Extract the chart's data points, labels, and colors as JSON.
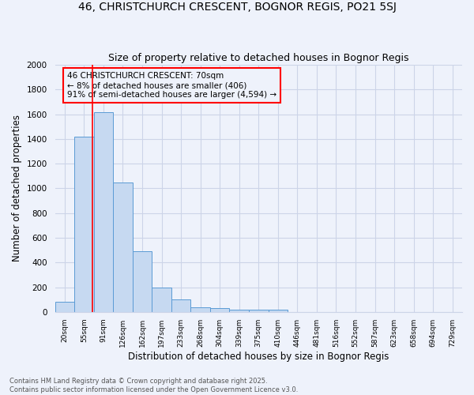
{
  "title": "46, CHRISTCHURCH CRESCENT, BOGNOR REGIS, PO21 5SJ",
  "subtitle": "Size of property relative to detached houses in Bognor Regis",
  "xlabel": "Distribution of detached houses by size in Bognor Regis",
  "ylabel": "Number of detached properties",
  "categories": [
    "20sqm",
    "55sqm",
    "91sqm",
    "126sqm",
    "162sqm",
    "197sqm",
    "233sqm",
    "268sqm",
    "304sqm",
    "339sqm",
    "375sqm",
    "410sqm",
    "446sqm",
    "481sqm",
    "516sqm",
    "552sqm",
    "587sqm",
    "623sqm",
    "658sqm",
    "694sqm",
    "729sqm"
  ],
  "bar_heights": [
    80,
    1420,
    1620,
    1050,
    490,
    200,
    100,
    35,
    30,
    20,
    20,
    20,
    0,
    0,
    0,
    0,
    0,
    0,
    0,
    0,
    0
  ],
  "bar_color": "#c6d9f1",
  "bar_edge_color": "#5b9bd5",
  "ylim": [
    0,
    2000
  ],
  "yticks": [
    0,
    200,
    400,
    600,
    800,
    1000,
    1200,
    1400,
    1600,
    1800,
    2000
  ],
  "annotation_text": "46 CHRISTCHURCH CRESCENT: 70sqm\n← 8% of detached houses are smaller (406)\n91% of semi-detached houses are larger (4,594) →",
  "footnote1": "Contains HM Land Registry data © Crown copyright and database right 2025.",
  "footnote2": "Contains public sector information licensed under the Open Government Licence v3.0.",
  "bg_color": "#eef2fb",
  "grid_color": "#ccd4e8",
  "title_fontsize": 10,
  "subtitle_fontsize": 9,
  "xlabel_fontsize": 8.5,
  "ylabel_fontsize": 8.5,
  "annot_fontsize": 7.5,
  "footnote_fontsize": 6
}
